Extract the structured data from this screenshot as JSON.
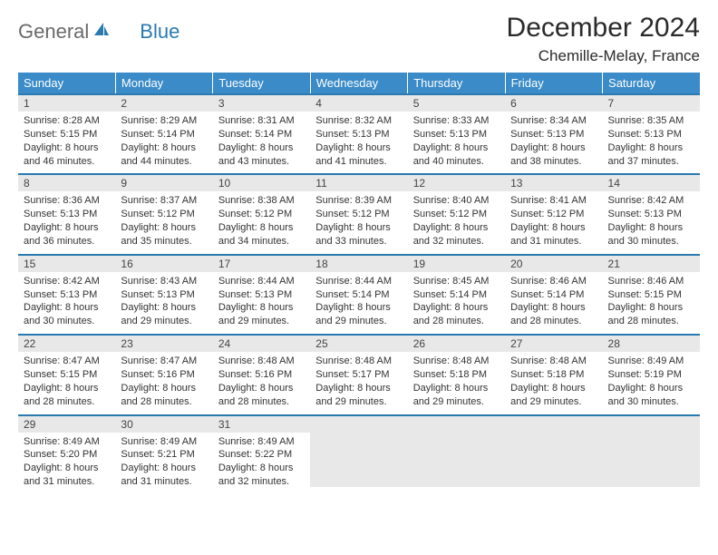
{
  "logo": {
    "general": "General",
    "blue": "Blue"
  },
  "title": "December 2024",
  "location": "Chemille-Melay, France",
  "colors": {
    "header_bg": "#3a8bc8",
    "header_text": "#ffffff",
    "border": "#2a7ab0",
    "daynum_bg": "#e8e8e8",
    "text": "#333333",
    "logo_gray": "#6a6a6a",
    "logo_blue": "#2a7ab0"
  },
  "weekdays": [
    "Sunday",
    "Monday",
    "Tuesday",
    "Wednesday",
    "Thursday",
    "Friday",
    "Saturday"
  ],
  "weeks": [
    [
      {
        "n": "1",
        "sr": "Sunrise: 8:28 AM",
        "ss": "Sunset: 5:15 PM",
        "d1": "Daylight: 8 hours",
        "d2": "and 46 minutes."
      },
      {
        "n": "2",
        "sr": "Sunrise: 8:29 AM",
        "ss": "Sunset: 5:14 PM",
        "d1": "Daylight: 8 hours",
        "d2": "and 44 minutes."
      },
      {
        "n": "3",
        "sr": "Sunrise: 8:31 AM",
        "ss": "Sunset: 5:14 PM",
        "d1": "Daylight: 8 hours",
        "d2": "and 43 minutes."
      },
      {
        "n": "4",
        "sr": "Sunrise: 8:32 AM",
        "ss": "Sunset: 5:13 PM",
        "d1": "Daylight: 8 hours",
        "d2": "and 41 minutes."
      },
      {
        "n": "5",
        "sr": "Sunrise: 8:33 AM",
        "ss": "Sunset: 5:13 PM",
        "d1": "Daylight: 8 hours",
        "d2": "and 40 minutes."
      },
      {
        "n": "6",
        "sr": "Sunrise: 8:34 AM",
        "ss": "Sunset: 5:13 PM",
        "d1": "Daylight: 8 hours",
        "d2": "and 38 minutes."
      },
      {
        "n": "7",
        "sr": "Sunrise: 8:35 AM",
        "ss": "Sunset: 5:13 PM",
        "d1": "Daylight: 8 hours",
        "d2": "and 37 minutes."
      }
    ],
    [
      {
        "n": "8",
        "sr": "Sunrise: 8:36 AM",
        "ss": "Sunset: 5:13 PM",
        "d1": "Daylight: 8 hours",
        "d2": "and 36 minutes."
      },
      {
        "n": "9",
        "sr": "Sunrise: 8:37 AM",
        "ss": "Sunset: 5:12 PM",
        "d1": "Daylight: 8 hours",
        "d2": "and 35 minutes."
      },
      {
        "n": "10",
        "sr": "Sunrise: 8:38 AM",
        "ss": "Sunset: 5:12 PM",
        "d1": "Daylight: 8 hours",
        "d2": "and 34 minutes."
      },
      {
        "n": "11",
        "sr": "Sunrise: 8:39 AM",
        "ss": "Sunset: 5:12 PM",
        "d1": "Daylight: 8 hours",
        "d2": "and 33 minutes."
      },
      {
        "n": "12",
        "sr": "Sunrise: 8:40 AM",
        "ss": "Sunset: 5:12 PM",
        "d1": "Daylight: 8 hours",
        "d2": "and 32 minutes."
      },
      {
        "n": "13",
        "sr": "Sunrise: 8:41 AM",
        "ss": "Sunset: 5:12 PM",
        "d1": "Daylight: 8 hours",
        "d2": "and 31 minutes."
      },
      {
        "n": "14",
        "sr": "Sunrise: 8:42 AM",
        "ss": "Sunset: 5:13 PM",
        "d1": "Daylight: 8 hours",
        "d2": "and 30 minutes."
      }
    ],
    [
      {
        "n": "15",
        "sr": "Sunrise: 8:42 AM",
        "ss": "Sunset: 5:13 PM",
        "d1": "Daylight: 8 hours",
        "d2": "and 30 minutes."
      },
      {
        "n": "16",
        "sr": "Sunrise: 8:43 AM",
        "ss": "Sunset: 5:13 PM",
        "d1": "Daylight: 8 hours",
        "d2": "and 29 minutes."
      },
      {
        "n": "17",
        "sr": "Sunrise: 8:44 AM",
        "ss": "Sunset: 5:13 PM",
        "d1": "Daylight: 8 hours",
        "d2": "and 29 minutes."
      },
      {
        "n": "18",
        "sr": "Sunrise: 8:44 AM",
        "ss": "Sunset: 5:14 PM",
        "d1": "Daylight: 8 hours",
        "d2": "and 29 minutes."
      },
      {
        "n": "19",
        "sr": "Sunrise: 8:45 AM",
        "ss": "Sunset: 5:14 PM",
        "d1": "Daylight: 8 hours",
        "d2": "and 28 minutes."
      },
      {
        "n": "20",
        "sr": "Sunrise: 8:46 AM",
        "ss": "Sunset: 5:14 PM",
        "d1": "Daylight: 8 hours",
        "d2": "and 28 minutes."
      },
      {
        "n": "21",
        "sr": "Sunrise: 8:46 AM",
        "ss": "Sunset: 5:15 PM",
        "d1": "Daylight: 8 hours",
        "d2": "and 28 minutes."
      }
    ],
    [
      {
        "n": "22",
        "sr": "Sunrise: 8:47 AM",
        "ss": "Sunset: 5:15 PM",
        "d1": "Daylight: 8 hours",
        "d2": "and 28 minutes."
      },
      {
        "n": "23",
        "sr": "Sunrise: 8:47 AM",
        "ss": "Sunset: 5:16 PM",
        "d1": "Daylight: 8 hours",
        "d2": "and 28 minutes."
      },
      {
        "n": "24",
        "sr": "Sunrise: 8:48 AM",
        "ss": "Sunset: 5:16 PM",
        "d1": "Daylight: 8 hours",
        "d2": "and 28 minutes."
      },
      {
        "n": "25",
        "sr": "Sunrise: 8:48 AM",
        "ss": "Sunset: 5:17 PM",
        "d1": "Daylight: 8 hours",
        "d2": "and 29 minutes."
      },
      {
        "n": "26",
        "sr": "Sunrise: 8:48 AM",
        "ss": "Sunset: 5:18 PM",
        "d1": "Daylight: 8 hours",
        "d2": "and 29 minutes."
      },
      {
        "n": "27",
        "sr": "Sunrise: 8:48 AM",
        "ss": "Sunset: 5:18 PM",
        "d1": "Daylight: 8 hours",
        "d2": "and 29 minutes."
      },
      {
        "n": "28",
        "sr": "Sunrise: 8:49 AM",
        "ss": "Sunset: 5:19 PM",
        "d1": "Daylight: 8 hours",
        "d2": "and 30 minutes."
      }
    ],
    [
      {
        "n": "29",
        "sr": "Sunrise: 8:49 AM",
        "ss": "Sunset: 5:20 PM",
        "d1": "Daylight: 8 hours",
        "d2": "and 31 minutes."
      },
      {
        "n": "30",
        "sr": "Sunrise: 8:49 AM",
        "ss": "Sunset: 5:21 PM",
        "d1": "Daylight: 8 hours",
        "d2": "and 31 minutes."
      },
      {
        "n": "31",
        "sr": "Sunrise: 8:49 AM",
        "ss": "Sunset: 5:22 PM",
        "d1": "Daylight: 8 hours",
        "d2": "and 32 minutes."
      },
      null,
      null,
      null,
      null
    ]
  ]
}
